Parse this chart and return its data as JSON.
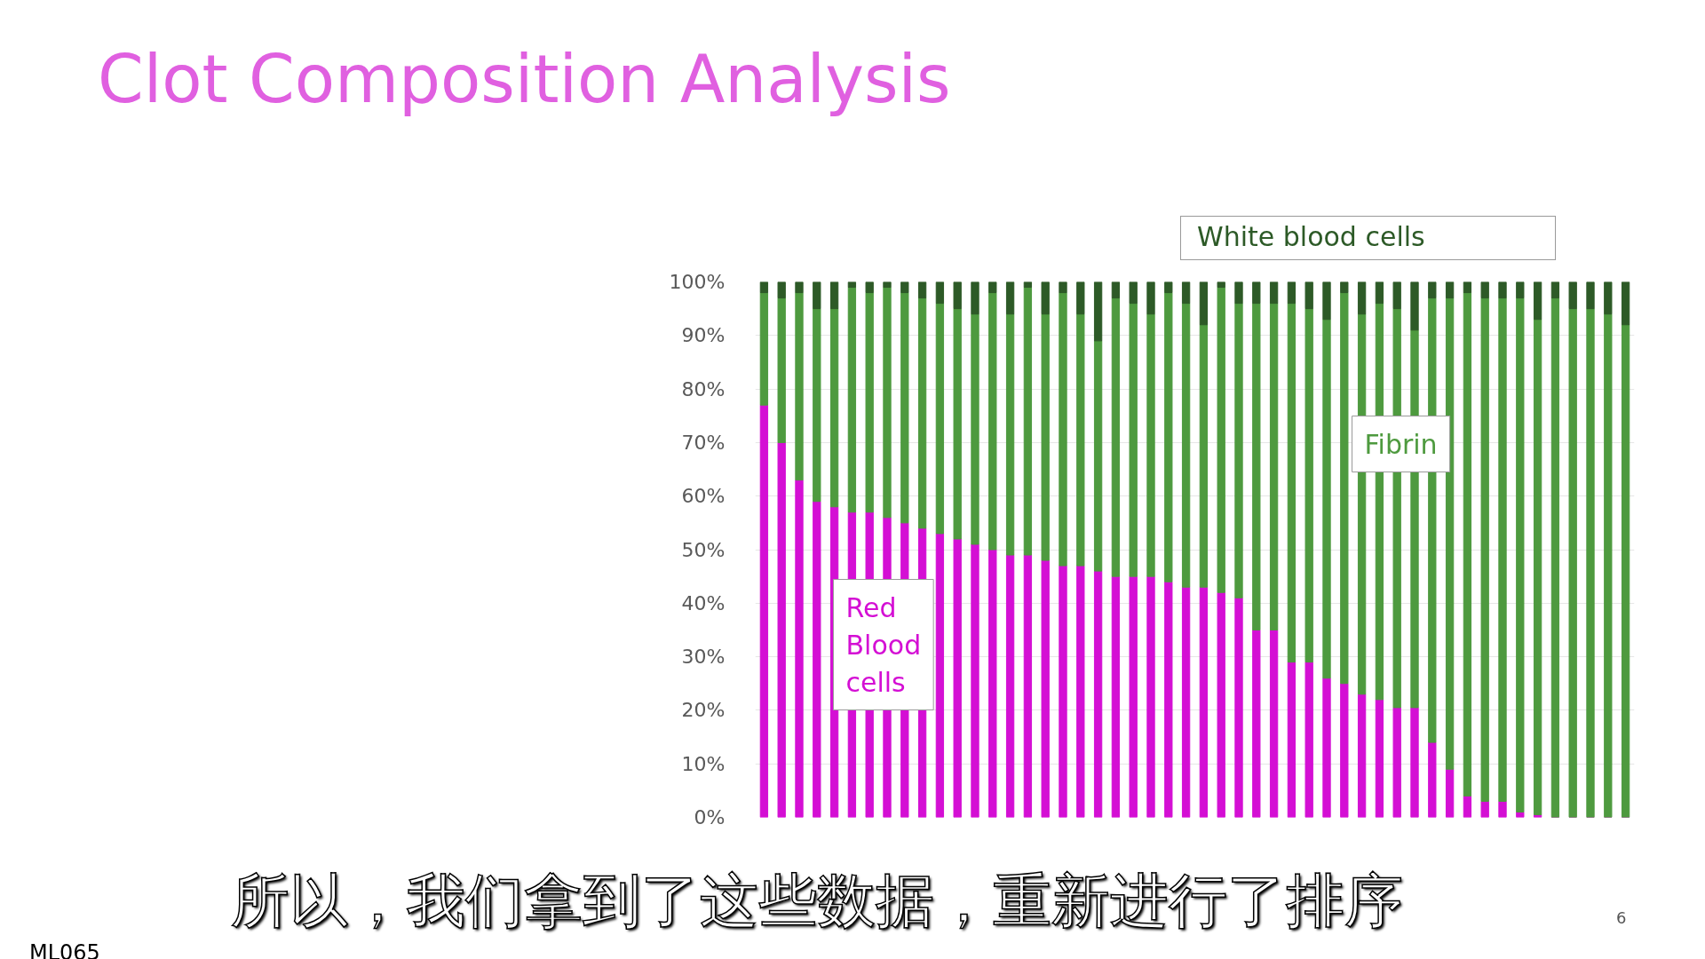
{
  "chart_data": {
    "type": "bar",
    "title": "Clot Composition Analysis",
    "stacked": true,
    "categories": [
      null,
      null,
      null,
      null,
      null,
      null,
      null,
      null,
      null,
      null,
      null,
      null,
      null,
      null,
      null,
      null,
      null,
      null,
      null,
      null,
      null,
      null,
      null,
      null,
      null,
      null,
      null,
      null,
      null,
      null,
      null,
      null,
      null,
      null,
      null,
      null,
      null,
      null,
      null,
      null,
      null,
      null,
      null,
      null,
      null,
      null,
      null,
      null,
      null,
      null
    ],
    "series": [
      {
        "name": "Red Blood cells",
        "color": "#d40fd4",
        "values": [
          77,
          70,
          63,
          59,
          58,
          57,
          57,
          56,
          55,
          54,
          53,
          52,
          51,
          50,
          49,
          49,
          48,
          47,
          47,
          46,
          45,
          45,
          45,
          44,
          43,
          43,
          42,
          41,
          35,
          35,
          29,
          29,
          26,
          25,
          23,
          22,
          20.5,
          20.5,
          14,
          9,
          4,
          3,
          3,
          1,
          0.5,
          0,
          0,
          0,
          0,
          0
        ]
      },
      {
        "name": "Fibrin",
        "color": "#4e9a3f",
        "values": [
          21,
          27,
          35,
          36,
          37,
          42,
          41,
          43,
          43,
          43,
          43,
          43,
          43,
          48,
          45,
          50,
          46,
          51,
          47,
          43,
          52,
          51,
          49,
          54,
          53,
          49,
          57,
          55,
          61,
          61,
          67,
          66,
          67,
          73,
          71,
          74,
          74.5,
          70.5,
          83,
          88,
          94,
          94,
          94,
          96,
          92.5,
          97,
          95,
          95,
          94,
          92
        ]
      },
      {
        "name": "White blood cells",
        "color": "#2d5a27",
        "values": [
          2,
          3,
          2,
          5,
          5,
          1,
          2,
          1,
          2,
          3,
          4,
          5,
          6,
          2,
          6,
          1,
          6,
          2,
          6,
          11,
          3,
          4,
          6,
          2,
          4,
          8,
          1,
          4,
          4,
          4,
          4,
          5,
          7,
          2,
          6,
          4,
          5,
          9,
          3,
          3,
          2,
          3,
          3,
          3,
          7,
          3,
          5,
          5,
          6,
          8
        ]
      }
    ],
    "ylim": [
      0,
      100
    ],
    "yticks": [
      {
        "value": 0,
        "label": "0%"
      },
      {
        "value": 10,
        "label": "10%"
      },
      {
        "value": 20,
        "label": "20%"
      },
      {
        "value": 30,
        "label": "30%"
      },
      {
        "value": 40,
        "label": "40%"
      },
      {
        "value": 50,
        "label": "50%"
      },
      {
        "value": 60,
        "label": "60%"
      },
      {
        "value": 70,
        "label": "70%"
      },
      {
        "value": 80,
        "label": "80%"
      },
      {
        "value": 90,
        "label": "90%"
      },
      {
        "value": 100,
        "label": "100%"
      }
    ],
    "grid": "y",
    "annotations": [
      "所以，我们拿到了这些数据，重新进行了排序",
      "ML065",
      "6"
    ]
  }
}
